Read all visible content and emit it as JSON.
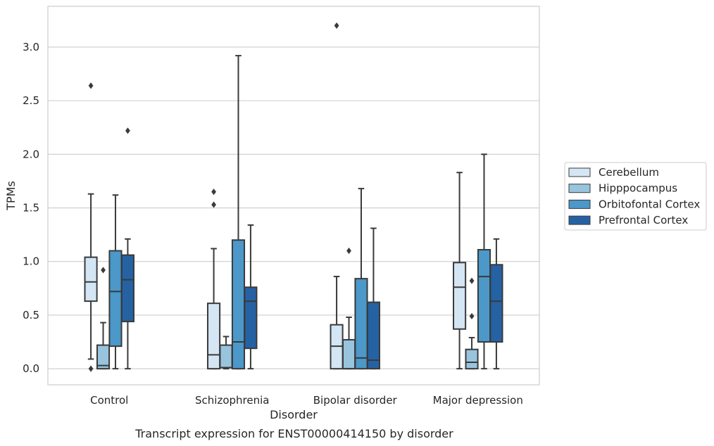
{
  "chart_data": {
    "type": "box",
    "caption": "Transcript expression for ENST00000414150 by disorder",
    "xlabel": "Disorder",
    "ylabel": "TPMs",
    "ylim": [
      -0.15,
      3.38
    ],
    "yticks": [
      "0.0",
      "0.5",
      "1.0",
      "1.5",
      "2.0",
      "2.5",
      "3.0"
    ],
    "grid": "horizontal",
    "legend_position": "right",
    "categories": [
      "Control",
      "Schizophrenia",
      "Bipolar disorder",
      "Major depression"
    ],
    "series": [
      {
        "name": "Cerebellum",
        "color": "#d4e5f4",
        "boxes": [
          {
            "whisker_low": 0.09,
            "q1": 0.63,
            "median": 0.81,
            "q3": 1.04,
            "whisker_high": 1.63,
            "outliers": [
              0.0,
              2.64
            ]
          },
          {
            "whisker_low": 0.0,
            "q1": 0.0,
            "median": 0.13,
            "q3": 0.61,
            "whisker_high": 1.12,
            "outliers": [
              1.53,
              1.65
            ]
          },
          {
            "whisker_low": 0.0,
            "q1": 0.0,
            "median": 0.21,
            "q3": 0.41,
            "whisker_high": 0.86,
            "outliers": [
              3.2
            ]
          },
          {
            "whisker_low": 0.0,
            "q1": 0.37,
            "median": 0.76,
            "q3": 0.99,
            "whisker_high": 1.83,
            "outliers": []
          }
        ]
      },
      {
        "name": "Hipppocampus",
        "color": "#99c4de",
        "boxes": [
          {
            "whisker_low": 0.0,
            "q1": 0.0,
            "median": 0.03,
            "q3": 0.22,
            "whisker_high": 0.43,
            "outliers": [
              0.92
            ]
          },
          {
            "whisker_low": 0.0,
            "q1": 0.01,
            "median": 0.01,
            "q3": 0.22,
            "whisker_high": 0.3,
            "outliers": []
          },
          {
            "whisker_low": 0.0,
            "q1": 0.0,
            "median": 0.0,
            "q3": 0.27,
            "whisker_high": 0.48,
            "outliers": [
              1.1
            ]
          },
          {
            "whisker_low": 0.0,
            "q1": 0.0,
            "median": 0.06,
            "q3": 0.18,
            "whisker_high": 0.29,
            "outliers": [
              0.49,
              0.82
            ]
          }
        ]
      },
      {
        "name": "Orbitofontal Cortex",
        "color": "#4b98c9",
        "boxes": [
          {
            "whisker_low": 0.0,
            "q1": 0.21,
            "median": 0.72,
            "q3": 1.1,
            "whisker_high": 1.62,
            "outliers": []
          },
          {
            "whisker_low": 0.0,
            "q1": 0.0,
            "median": 0.25,
            "q3": 1.2,
            "whisker_high": 2.92,
            "outliers": []
          },
          {
            "whisker_low": 0.0,
            "q1": 0.0,
            "median": 0.1,
            "q3": 0.84,
            "whisker_high": 1.68,
            "outliers": []
          },
          {
            "whisker_low": 0.0,
            "q1": 0.25,
            "median": 0.86,
            "q3": 1.11,
            "whisker_high": 2.0,
            "outliers": []
          }
        ]
      },
      {
        "name": "Prefrontal Cortex",
        "color": "#2562a4",
        "boxes": [
          {
            "whisker_low": 0.0,
            "q1": 0.44,
            "median": 0.83,
            "q3": 1.06,
            "whisker_high": 1.21,
            "outliers": [
              2.22
            ]
          },
          {
            "whisker_low": 0.0,
            "q1": 0.19,
            "median": 0.63,
            "q3": 0.76,
            "whisker_high": 1.34,
            "outliers": []
          },
          {
            "whisker_low": 0.0,
            "q1": 0.0,
            "median": 0.08,
            "q3": 0.62,
            "whisker_high": 1.31,
            "outliers": []
          },
          {
            "whisker_low": 0.0,
            "q1": 0.25,
            "median": 0.63,
            "q3": 0.97,
            "whisker_high": 1.21,
            "outliers": []
          }
        ]
      }
    ]
  }
}
